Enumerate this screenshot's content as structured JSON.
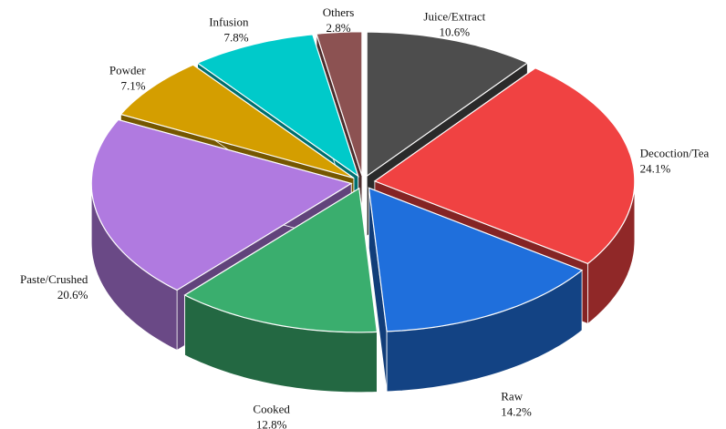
{
  "chart_data": {
    "type": "pie3d",
    "categories": [
      "Juice/Extract",
      "Decoction/Tea",
      "Raw",
      "Cooked",
      "Paste/Crushed",
      "Powder",
      "Infusion",
      "Others"
    ],
    "values": [
      10.6,
      24.1,
      14.2,
      12.8,
      20.6,
      7.1,
      7.8,
      2.8
    ],
    "value_labels": [
      "10.6%",
      "24.1%",
      "14.2%",
      "12.8%",
      "20.6%",
      "7.1%",
      "7.8%",
      "2.8%"
    ],
    "colors": [
      "#4d4d4d",
      "#f04242",
      "#1f6fdc",
      "#3aae6e",
      "#b07ae0",
      "#d49e00",
      "#00caca",
      "#8c5252"
    ]
  }
}
